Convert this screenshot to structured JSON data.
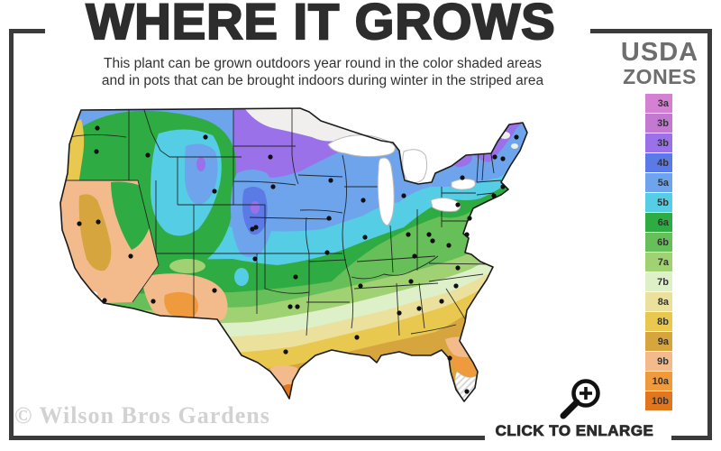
{
  "header": {
    "title": "WHERE IT GROWS",
    "subtitle_line1": "This plant can be grown outdoors year round in the color shaded areas",
    "subtitle_line2": "and in pots that can be brought indoors during winter in the striped area"
  },
  "legend": {
    "title_line1": "USDA",
    "title_line2": "ZONES",
    "zones": [
      {
        "label": "3a",
        "color": "#d581d3"
      },
      {
        "label": "3b",
        "color": "#c378d2"
      },
      {
        "label": "3b",
        "color": "#9b71e9"
      },
      {
        "label": "4b",
        "color": "#5c7ae5"
      },
      {
        "label": "5a",
        "color": "#6ea4ec"
      },
      {
        "label": "5b",
        "color": "#55cde4"
      },
      {
        "label": "6a",
        "color": "#2fab44"
      },
      {
        "label": "6b",
        "color": "#66bf58"
      },
      {
        "label": "7a",
        "color": "#a0d173"
      },
      {
        "label": "7b",
        "color": "#ddf0c8"
      },
      {
        "label": "8a",
        "color": "#ebe09c"
      },
      {
        "label": "8b",
        "color": "#e8c84e"
      },
      {
        "label": "9a",
        "color": "#d6a53e"
      },
      {
        "label": "9b",
        "color": "#f3bb8c"
      },
      {
        "label": "10a",
        "color": "#ef9a3d"
      },
      {
        "label": "10b",
        "color": "#e0761e"
      }
    ]
  },
  "footer": {
    "watermark": "© Wilson Bros Gardens",
    "enlarge_label": "CLICK TO ENLARGE"
  }
}
